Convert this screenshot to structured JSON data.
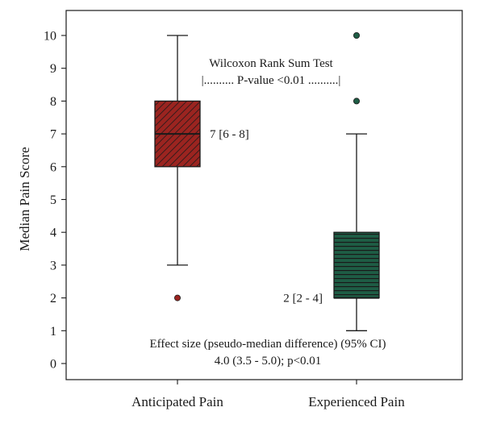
{
  "chart_data": {
    "type": "box",
    "ylabel": "Median Pain Score",
    "ylim": [
      -0.2,
      10.5
    ],
    "yticks": [
      0,
      1,
      2,
      3,
      4,
      5,
      6,
      7,
      8,
      9,
      10
    ],
    "categories": [
      "Anticipated Pain",
      "Experienced Pain"
    ],
    "boxes": [
      {
        "name": "Anticipated Pain",
        "whisker_low": 3,
        "q1": 6,
        "median": 7,
        "q3": 8,
        "whisker_high": 10,
        "outliers": [
          2
        ],
        "color": "#9b2420",
        "hatch": "diagonal",
        "median_label": "7 [6 - 8]"
      },
      {
        "name": "Experienced Pain",
        "whisker_low": 1,
        "q1": 2,
        "median": 2,
        "q3": 4,
        "whisker_high": 7,
        "outliers": [
          8,
          10
        ],
        "color": "#1e5d45",
        "hatch": "horizontal",
        "median_label": "2 [2 - 4]"
      }
    ],
    "annotations": {
      "test_title": "Wilcoxon Rank Sum Test",
      "test_pvalue": "|.......... P-value <0.01 ..........|",
      "effect_line1": "Effect size (pseudo-median difference) (95% CI)",
      "effect_line2": "4.0 (3.5 - 5.0); p<0.01"
    }
  }
}
